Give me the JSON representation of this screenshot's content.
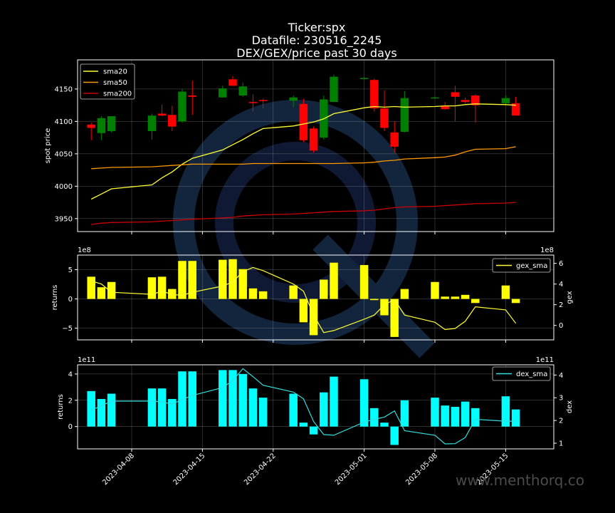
{
  "titles": [
    "Ticker:spx",
    "Datafile: 230516_2245",
    "DEX/GEX/price past 30 days"
  ],
  "watermark": "www.menthorq.co",
  "colors": {
    "background": "#000000",
    "up": "#008000",
    "down": "#ff0000",
    "sma20": "#ffff33",
    "sma50": "#ff9900",
    "sma200": "#cc0000",
    "gex_bar": "#ffff00",
    "gex_line": "#ffff33",
    "dex_bar": "#00ffff",
    "dex_line": "#33dddd",
    "logo": "#1e3f66"
  },
  "chart_data": [
    {
      "type": "candlestick",
      "ylabel": "spot price",
      "ylim": [
        3930,
        4195
      ],
      "yticks": [
        3950,
        4000,
        4050,
        4100,
        4150
      ],
      "x_tick_labels": [
        "2023-04-08",
        "2023-04-15",
        "2023-04-22",
        "2023-05-01",
        "2023-05-08",
        "2023-05-15"
      ],
      "grid": true,
      "legend": {
        "position": "top-left",
        "entries": [
          "sma20",
          "sma50",
          "sma200"
        ]
      },
      "dates": [
        "2023-04-04",
        "2023-04-05",
        "2023-04-06",
        "2023-04-10",
        "2023-04-11",
        "2023-04-12",
        "2023-04-13",
        "2023-04-14",
        "2023-04-17",
        "2023-04-18",
        "2023-04-19",
        "2023-04-20",
        "2023-04-21",
        "2023-04-24",
        "2023-04-25",
        "2023-04-26",
        "2023-04-27",
        "2023-04-28",
        "2023-05-01",
        "2023-05-02",
        "2023-05-03",
        "2023-05-04",
        "2023-05-05",
        "2023-05-08",
        "2023-05-09",
        "2023-05-10",
        "2023-05-11",
        "2023-05-12",
        "2023-05-15",
        "2023-05-16"
      ],
      "open": [
        4095,
        4082,
        4085,
        4085,
        4112,
        4110,
        4100,
        4140,
        4137,
        4165,
        4140,
        4130,
        4133,
        4132,
        4127,
        4089,
        4075,
        4130,
        4167,
        4164,
        4120,
        4083,
        4084,
        4137,
        4124,
        4145,
        4133,
        4140,
        4128,
        4128
      ],
      "high": [
        4098,
        4108,
        4107,
        4112,
        4126,
        4124,
        4150,
        4163,
        4155,
        4170,
        4160,
        4142,
        4135,
        4140,
        4135,
        4092,
        4140,
        4172,
        4169,
        4166,
        4148,
        4100,
        4147,
        4139,
        4130,
        4155,
        4137,
        4142,
        4140,
        4138
      ],
      "low": [
        4071,
        4071,
        4083,
        4072,
        4108,
        4085,
        4098,
        4110,
        4137,
        4155,
        4138,
        4115,
        4120,
        4122,
        4068,
        4052,
        4072,
        4130,
        4165,
        4115,
        4085,
        4052,
        4083,
        4135,
        4118,
        4100,
        4128,
        4098,
        4125,
        4109
      ],
      "close": [
        4090,
        4105,
        4108,
        4109,
        4109,
        4092,
        4146,
        4138,
        4151,
        4155,
        4154,
        4129,
        4132,
        4137,
        4071,
        4055,
        4134,
        4169,
        4167,
        4120,
        4090,
        4061,
        4136,
        4137,
        4119,
        4138,
        4130,
        4125,
        4136,
        4109
      ],
      "series": [
        {
          "name": "sma20",
          "values": [
            3980,
            3988,
            3996,
            4002,
            4013,
            4022,
            4034,
            4043,
            4056,
            4064,
            4072,
            4081,
            4089,
            4093,
            4096,
            4099,
            4104,
            4112,
            4121,
            4123,
            4122,
            4123,
            4122,
            4123,
            4124,
            4124,
            4126,
            4127,
            4126,
            4125
          ]
        },
        {
          "name": "sma50",
          "values": [
            4027,
            4028,
            4029,
            4030,
            4031,
            4032,
            4033,
            4034,
            4034,
            4034,
            4034,
            4035,
            4035,
            4035,
            4035,
            4035,
            4035,
            4035,
            4036,
            4037,
            4039,
            4040,
            4042,
            4044,
            4045,
            4048,
            4053,
            4057,
            4058,
            4061
          ]
        },
        {
          "name": "sma200",
          "values": [
            3941,
            3943,
            3944,
            3945,
            3946,
            3947,
            3948,
            3949,
            3951,
            3952,
            3954,
            3955,
            3956,
            3957,
            3958,
            3959,
            3960,
            3961,
            3962,
            3963,
            3965,
            3967,
            3968,
            3969,
            3970,
            3971,
            3972,
            3973,
            3974,
            3975
          ]
        }
      ]
    },
    {
      "type": "bar",
      "ylabel": "returns",
      "right_ylabel": "gex",
      "ylim": [
        -7,
        7.5
      ],
      "yticks": [
        -5,
        0,
        5
      ],
      "y_exponent": "1e8",
      "right_ylim": [
        -1.4,
        6.8
      ],
      "right_yticks": [
        0,
        2,
        4,
        6
      ],
      "right_exponent": "1e8",
      "legend": {
        "position": "top-right",
        "entries": [
          "gex_sma"
        ]
      },
      "values": [
        3.8,
        2.0,
        2.9,
        3.7,
        3.8,
        1.7,
        6.5,
        6.5,
        6.7,
        6.8,
        5.1,
        1.8,
        1.3,
        2.3,
        -4.0,
        -6.2,
        3.3,
        6.2,
        5.8,
        -0.2,
        -2.8,
        -6.5,
        1.7,
        2.9,
        0.4,
        0.4,
        0.7,
        -0.7,
        2.3,
        -0.7
      ],
      "series": [
        {
          "name": "gex_sma",
          "values": [
            4.3,
            4.0,
            3.2,
            3.0,
            3.3,
            3.0,
            2.9,
            3.2,
            3.8,
            4.2,
            5.2,
            5.6,
            5.3,
            4.0,
            3.3,
            1.0,
            -0.7,
            -0.5,
            0.6,
            1.0,
            2.0,
            2.5,
            1.0,
            0.3,
            -0.4,
            -0.3,
            0.4,
            1.8,
            1.5,
            0.2
          ]
        }
      ]
    },
    {
      "type": "bar",
      "ylabel": "returns",
      "right_ylabel": "dex",
      "ylim": [
        -1.7,
        4.7
      ],
      "yticks": [
        0,
        2,
        4
      ],
      "y_exponent": "1e11",
      "right_ylim": [
        0.75,
        4.45
      ],
      "right_yticks": [
        1,
        2,
        3,
        4
      ],
      "right_exponent": "1e11",
      "legend": {
        "position": "top-right",
        "entries": [
          "dex_sma"
        ]
      },
      "values": [
        2.7,
        2.1,
        2.5,
        2.9,
        2.9,
        2.1,
        4.2,
        4.2,
        4.3,
        4.3,
        4.0,
        2.9,
        2.2,
        2.5,
        0.3,
        -0.6,
        2.6,
        3.8,
        3.6,
        1.4,
        0.3,
        -1.4,
        2.0,
        2.2,
        1.6,
        1.5,
        1.9,
        1.4,
        2.3,
        1.3
      ],
      "series": [
        {
          "name": "dex_sma",
          "values": [
            2.45,
            2.65,
            2.85,
            2.85,
            2.82,
            2.72,
            2.92,
            3.1,
            3.45,
            3.75,
            4.28,
            3.93,
            3.55,
            3.25,
            2.95,
            1.95,
            1.38,
            1.35,
            1.93,
            2.05,
            2.15,
            2.42,
            1.55,
            1.35,
            0.97,
            0.98,
            1.25,
            2.05,
            1.97,
            1.97
          ]
        }
      ]
    }
  ]
}
